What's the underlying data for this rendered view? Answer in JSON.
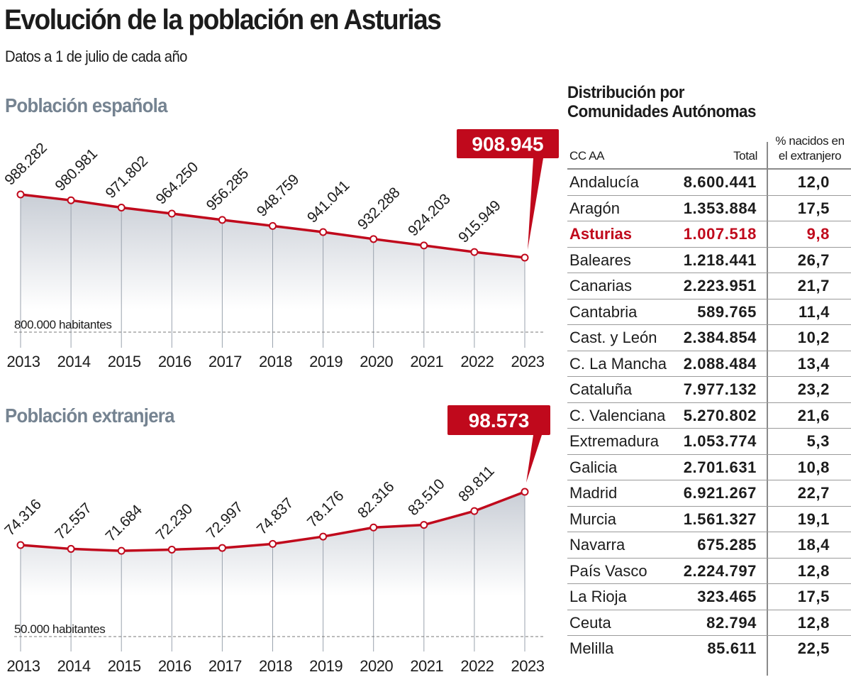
{
  "header": {
    "title": "Evolución de la población en Asturias",
    "subtitle": "Datos a 1 de julio de cada año"
  },
  "colors": {
    "accent": "#c0091c",
    "section_title": "#758391",
    "area_fill_top": "#cbd0d8",
    "gridline": "#9aa2ad",
    "text": "#1c1c1c"
  },
  "chart_data": [
    {
      "type": "area",
      "title": "Población española",
      "x": [
        "2013",
        "2014",
        "2015",
        "2016",
        "2017",
        "2018",
        "2019",
        "2020",
        "2021",
        "2022",
        "2023"
      ],
      "values": [
        988282,
        980981,
        971802,
        964250,
        956285,
        948759,
        941041,
        932288,
        924203,
        915949,
        908945
      ],
      "labels": [
        "988.282",
        "980.981",
        "971.802",
        "964.250",
        "956.285",
        "948.759",
        "941.041",
        "932.288",
        "924.203",
        "915.949",
        "908.945"
      ],
      "highlight": {
        "index": 10,
        "label": "908.945"
      },
      "reference_line": {
        "value": 800000,
        "label": "800.000 habitantes"
      },
      "xlabel": "",
      "ylabel": "",
      "grid": "vertical",
      "legend": "none"
    },
    {
      "type": "area",
      "title": "Población extranjera",
      "x": [
        "2013",
        "2014",
        "2015",
        "2016",
        "2017",
        "2018",
        "2019",
        "2020",
        "2021",
        "2022",
        "2023"
      ],
      "values": [
        74316,
        72557,
        71684,
        72230,
        72997,
        74837,
        78176,
        82316,
        83510,
        89811,
        98573
      ],
      "labels": [
        "74.316",
        "72.557",
        "71.684",
        "72.230",
        "72.997",
        "74.837",
        "78.176",
        "82.316",
        "83.510",
        "89.811",
        "98.573"
      ],
      "highlight": {
        "index": 10,
        "label": "98.573"
      },
      "reference_line": {
        "value": 50000,
        "label": "50.000 habitantes"
      },
      "xlabel": "",
      "ylabel": "",
      "grid": "vertical",
      "legend": "none"
    },
    {
      "type": "table",
      "title": "Distribución por Comunidades Autónomas",
      "columns": [
        "CC AA",
        "Total",
        "% nacidos en el extranjero"
      ],
      "rows": [
        {
          "name": "Andalucía",
          "total": "8.600.441",
          "pct": "12,0"
        },
        {
          "name": "Aragón",
          "total": "1.353.884",
          "pct": "17,5"
        },
        {
          "name": "Asturias",
          "total": "1.007.518",
          "pct": "9,8",
          "highlight": true
        },
        {
          "name": "Baleares",
          "total": "1.218.441",
          "pct": "26,7"
        },
        {
          "name": "Canarias",
          "total": "2.223.951",
          "pct": "21,7"
        },
        {
          "name": "Cantabria",
          "total": "589.765",
          "pct": "11,4"
        },
        {
          "name": "Cast. y León",
          "total": "2.384.854",
          "pct": "10,2"
        },
        {
          "name": "C. La Mancha",
          "total": "2.088.484",
          "pct": "13,4"
        },
        {
          "name": "Cataluña",
          "total": "7.977.132",
          "pct": "23,2"
        },
        {
          "name": "C. Valenciana",
          "total": "5.270.802",
          "pct": "21,6"
        },
        {
          "name": "Extremadura",
          "total": "1.053.774",
          "pct": "5,3"
        },
        {
          "name": "Galicia",
          "total": "2.701.631",
          "pct": "10,8"
        },
        {
          "name": "Madrid",
          "total": "6.921.267",
          "pct": "22,7"
        },
        {
          "name": "Murcia",
          "total": "1.561.327",
          "pct": "19,1"
        },
        {
          "name": "Navarra",
          "total": "675.285",
          "pct": "18,4"
        },
        {
          "name": "País Vasco",
          "total": "2.224.797",
          "pct": "12,8"
        },
        {
          "name": "La Rioja",
          "total": "323.465",
          "pct": "17,5"
        },
        {
          "name": "Ceuta",
          "total": "82.794",
          "pct": "12,8"
        },
        {
          "name": "Melilla",
          "total": "85.611",
          "pct": "22,5"
        }
      ]
    }
  ],
  "table": {
    "title_line1": "Distribución por",
    "title_line2": "Comunidades Autónomas",
    "col_name": "CC AA",
    "col_total": "Total",
    "col_pct_line1": "% nacidos en",
    "col_pct_line2": "el extranjero"
  }
}
